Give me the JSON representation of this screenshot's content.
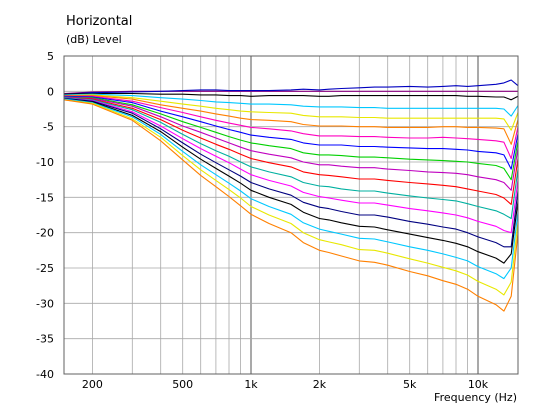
{
  "chart_data": {
    "type": "line",
    "title": "Horizontal",
    "subtitle": "(dB)  Level",
    "xlabel": "Frequency  (Hz)",
    "xscale": "log",
    "xlim": [
      150,
      15000
    ],
    "ylim": [
      -40,
      5
    ],
    "yticks": [
      "5",
      "0",
      "-5",
      "-10",
      "-15",
      "-20",
      "-25",
      "-30",
      "-35",
      "-40"
    ],
    "xticks": [
      {
        "value": 200,
        "label": "200"
      },
      {
        "value": 500,
        "label": "500"
      },
      {
        "value": 1000,
        "label": "1k"
      },
      {
        "value": 2000,
        "label": "2k"
      },
      {
        "value": 5000,
        "label": "5k"
      },
      {
        "value": 10000,
        "label": "10k"
      }
    ],
    "grid": true,
    "x": [
      150,
      200,
      300,
      400,
      500,
      600,
      700,
      800,
      900,
      1000,
      1200,
      1500,
      1700,
      2000,
      2200,
      2500,
      3000,
      3500,
      4000,
      5000,
      6000,
      7000,
      8000,
      9000,
      10000,
      12000,
      13000,
      14000,
      15000
    ],
    "series": [
      {
        "color": "#8a0080",
        "values": [
          -0.3,
          -0.1,
          0.0,
          0.0,
          0.0,
          0.0,
          0.0,
          0.0,
          0.0,
          0.0,
          0.0,
          0.0,
          0.0,
          0.0,
          0.0,
          0.0,
          0.0,
          0.0,
          0.0,
          0.0,
          0.0,
          0.0,
          0.0,
          0.0,
          0.0,
          0.0,
          0.0,
          0.0,
          0.0
        ]
      },
      {
        "color": "#0000c0",
        "values": [
          -0.4,
          -0.2,
          -0.1,
          0.0,
          0.1,
          0.2,
          0.2,
          0.1,
          0.1,
          0.1,
          0.1,
          0.2,
          0.3,
          0.2,
          0.3,
          0.4,
          0.5,
          0.6,
          0.6,
          0.7,
          0.6,
          0.7,
          0.8,
          0.7,
          0.8,
          1.0,
          1.2,
          1.6,
          0.8
        ]
      },
      {
        "color": "#000000",
        "values": [
          -0.4,
          -0.3,
          -0.3,
          -0.4,
          -0.4,
          -0.5,
          -0.5,
          -0.6,
          -0.6,
          -0.7,
          -0.6,
          -0.6,
          -0.6,
          -0.7,
          -0.7,
          -0.6,
          -0.6,
          -0.6,
          -0.6,
          -0.6,
          -0.6,
          -0.6,
          -0.6,
          -0.7,
          -0.7,
          -0.8,
          -0.8,
          -1.2,
          -0.7
        ]
      },
      {
        "color": "#00c8ff",
        "values": [
          -0.5,
          -0.4,
          -0.6,
          -0.9,
          -1.1,
          -1.3,
          -1.5,
          -1.6,
          -1.7,
          -1.8,
          -1.8,
          -1.9,
          -2.1,
          -2.2,
          -2.2,
          -2.2,
          -2.3,
          -2.3,
          -2.4,
          -2.4,
          -2.4,
          -2.4,
          -2.4,
          -2.4,
          -2.4,
          -2.4,
          -2.5,
          -3.5,
          -2.0
        ]
      },
      {
        "color": "#e8e800",
        "values": [
          -0.6,
          -0.5,
          -0.9,
          -1.4,
          -1.8,
          -2.1,
          -2.4,
          -2.6,
          -2.8,
          -2.9,
          -3.0,
          -3.1,
          -3.4,
          -3.6,
          -3.6,
          -3.6,
          -3.7,
          -3.7,
          -3.8,
          -3.8,
          -3.8,
          -3.8,
          -3.8,
          -3.8,
          -3.8,
          -3.8,
          -3.9,
          -5.5,
          -3.0
        ]
      },
      {
        "color": "#ff8000",
        "values": [
          -0.6,
          -0.6,
          -1.1,
          -1.9,
          -2.4,
          -2.8,
          -3.2,
          -3.5,
          -3.8,
          -4.0,
          -4.1,
          -4.3,
          -4.7,
          -4.9,
          -4.9,
          -4.9,
          -5.0,
          -5.0,
          -5.1,
          -5.1,
          -5.1,
          -5.0,
          -5.0,
          -5.1,
          -5.1,
          -5.2,
          -5.3,
          -7.5,
          -4.0
        ]
      },
      {
        "color": "#ff00c0",
        "values": [
          -0.7,
          -0.7,
          -1.4,
          -2.3,
          -3.0,
          -3.6,
          -4.1,
          -4.5,
          -4.8,
          -5.1,
          -5.3,
          -5.6,
          -6.0,
          -6.3,
          -6.3,
          -6.3,
          -6.4,
          -6.4,
          -6.5,
          -6.6,
          -6.6,
          -6.5,
          -6.6,
          -6.7,
          -6.8,
          -7.0,
          -7.2,
          -9.5,
          -5.0
        ]
      },
      {
        "color": "#0000ff",
        "values": [
          -0.7,
          -0.8,
          -1.6,
          -2.8,
          -3.6,
          -4.3,
          -4.9,
          -5.4,
          -5.8,
          -6.2,
          -6.5,
          -6.8,
          -7.3,
          -7.6,
          -7.6,
          -7.6,
          -7.8,
          -7.8,
          -7.9,
          -8.0,
          -8.1,
          -8.1,
          -8.2,
          -8.3,
          -8.5,
          -8.7,
          -9.0,
          -11.0,
          -6.0
        ]
      },
      {
        "color": "#00d000",
        "values": [
          -0.8,
          -0.9,
          -1.9,
          -3.2,
          -4.3,
          -5.1,
          -5.8,
          -6.4,
          -6.9,
          -7.3,
          -7.7,
          -8.1,
          -8.7,
          -9.0,
          -9.0,
          -9.1,
          -9.3,
          -9.3,
          -9.4,
          -9.6,
          -9.7,
          -9.8,
          -9.9,
          -10.0,
          -10.2,
          -10.5,
          -10.9,
          -12.5,
          -7.0
        ]
      },
      {
        "color": "#c000c0",
        "values": [
          -0.8,
          -1.0,
          -2.1,
          -3.6,
          -4.9,
          -5.8,
          -6.6,
          -7.3,
          -7.9,
          -8.4,
          -8.9,
          -9.4,
          -10.0,
          -10.4,
          -10.4,
          -10.6,
          -10.8,
          -10.8,
          -11.0,
          -11.2,
          -11.4,
          -11.5,
          -11.6,
          -11.8,
          -12.1,
          -12.5,
          -12.9,
          -14.0,
          -8.0
        ]
      },
      {
        "color": "#ff0000",
        "values": [
          -0.9,
          -1.1,
          -2.4,
          -4.0,
          -5.5,
          -6.6,
          -7.5,
          -8.2,
          -8.9,
          -9.5,
          -10.1,
          -10.7,
          -11.4,
          -11.8,
          -11.9,
          -12.1,
          -12.4,
          -12.4,
          -12.6,
          -12.9,
          -13.1,
          -13.3,
          -13.5,
          -13.8,
          -14.1,
          -14.6,
          -15.1,
          -16.0,
          -9.5
        ]
      },
      {
        "color": "#00b0a0",
        "values": [
          -0.9,
          -1.2,
          -2.6,
          -4.4,
          -6.1,
          -7.4,
          -8.4,
          -9.2,
          -10.0,
          -10.7,
          -11.4,
          -12.1,
          -12.9,
          -13.4,
          -13.5,
          -13.8,
          -14.1,
          -14.1,
          -14.4,
          -14.8,
          -15.1,
          -15.3,
          -15.5,
          -15.9,
          -16.3,
          -16.9,
          -17.4,
          -18.0,
          -11.0
        ]
      },
      {
        "color": "#ff00ff",
        "values": [
          -1.0,
          -1.3,
          -2.9,
          -4.9,
          -6.7,
          -8.1,
          -9.2,
          -10.1,
          -11.0,
          -11.8,
          -12.6,
          -13.4,
          -14.3,
          -14.9,
          -15.1,
          -15.4,
          -15.8,
          -15.8,
          -16.1,
          -16.6,
          -16.9,
          -17.2,
          -17.5,
          -17.9,
          -18.4,
          -19.1,
          -19.7,
          -20.0,
          -12.5
        ]
      },
      {
        "color": "#000080",
        "values": [
          -1.0,
          -1.4,
          -3.1,
          -5.3,
          -7.3,
          -8.9,
          -10.1,
          -11.1,
          -12.0,
          -12.9,
          -13.8,
          -14.7,
          -15.7,
          -16.4,
          -16.6,
          -17.0,
          -17.5,
          -17.5,
          -17.8,
          -18.4,
          -18.8,
          -19.2,
          -19.5,
          -20.0,
          -20.6,
          -21.4,
          -22.0,
          -22.0,
          -14.0
        ]
      },
      {
        "color": "#000000",
        "values": [
          -1.1,
          -1.5,
          -3.4,
          -5.7,
          -7.9,
          -9.6,
          -10.9,
          -12.0,
          -13.0,
          -14.0,
          -15.0,
          -16.0,
          -17.1,
          -18.0,
          -18.2,
          -18.6,
          -19.1,
          -19.2,
          -19.6,
          -20.2,
          -20.7,
          -21.1,
          -21.5,
          -22.0,
          -22.7,
          -23.6,
          -24.3,
          -23.0,
          -15.5
        ]
      },
      {
        "color": "#00c8ff",
        "values": [
          -1.1,
          -1.6,
          -3.6,
          -6.1,
          -8.5,
          -10.4,
          -11.8,
          -13.0,
          -14.1,
          -15.2,
          -16.3,
          -17.4,
          -18.6,
          -19.5,
          -19.8,
          -20.2,
          -20.8,
          -20.9,
          -21.3,
          -22.0,
          -22.5,
          -23.0,
          -23.5,
          -24.0,
          -24.8,
          -25.8,
          -26.5,
          -25.0,
          -17.0
        ]
      },
      {
        "color": "#e8e800",
        "values": [
          -1.2,
          -1.7,
          -3.9,
          -6.5,
          -9.1,
          -11.1,
          -12.6,
          -13.9,
          -15.1,
          -16.3,
          -17.5,
          -18.7,
          -20.0,
          -21.0,
          -21.3,
          -21.7,
          -22.4,
          -22.5,
          -22.9,
          -23.7,
          -24.3,
          -24.9,
          -25.4,
          -26.0,
          -26.9,
          -28.0,
          -28.8,
          -27.0,
          -18.5
        ]
      },
      {
        "color": "#ff8000",
        "values": [
          -1.2,
          -1.8,
          -4.1,
          -7.0,
          -9.7,
          -11.9,
          -13.5,
          -14.9,
          -16.2,
          -17.4,
          -18.7,
          -20.0,
          -21.4,
          -22.5,
          -22.8,
          -23.3,
          -24.0,
          -24.2,
          -24.6,
          -25.5,
          -26.1,
          -26.8,
          -27.3,
          -28.0,
          -29.0,
          -30.2,
          -31.1,
          -29.0,
          -20.0
        ]
      }
    ]
  }
}
